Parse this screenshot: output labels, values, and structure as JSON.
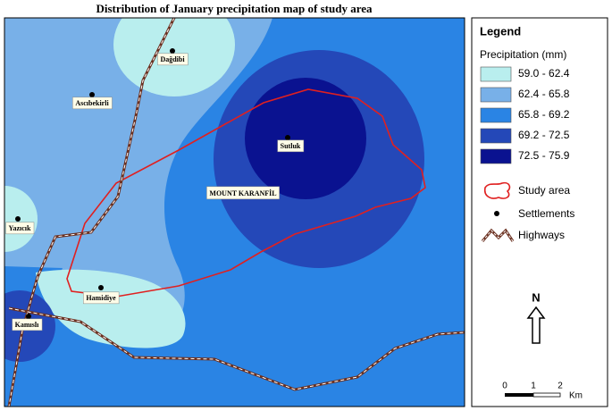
{
  "title": "Distribution of January precipitation map of study area",
  "places": [
    {
      "name": "Dağdibi"
    },
    {
      "name": "Ascıbekirli"
    },
    {
      "name": "Sutluk"
    },
    {
      "name": "MOUNT KARANFİL"
    },
    {
      "name": "Yazıcık"
    },
    {
      "name": "Hamidiye"
    },
    {
      "name": "Kamıslı"
    }
  ],
  "legend": {
    "title": "Legend",
    "subtitle": "Precipitation (mm)",
    "classes": [
      {
        "label": "59.0 - 62.4",
        "color": "#b9eeee"
      },
      {
        "label": "62.4 - 65.8",
        "color": "#78b0e8"
      },
      {
        "label": "65.8 - 69.2",
        "color": "#2a84e4"
      },
      {
        "label": "69.2 - 72.5",
        "color": "#2448b8"
      },
      {
        "label": "72.5 - 75.9",
        "color": "#0a1290"
      }
    ],
    "symbols": [
      "Study area",
      "Settlements",
      "Highways"
    ]
  },
  "north": "N",
  "scale": [
    "0",
    "1",
    "2",
    "Km"
  ]
}
